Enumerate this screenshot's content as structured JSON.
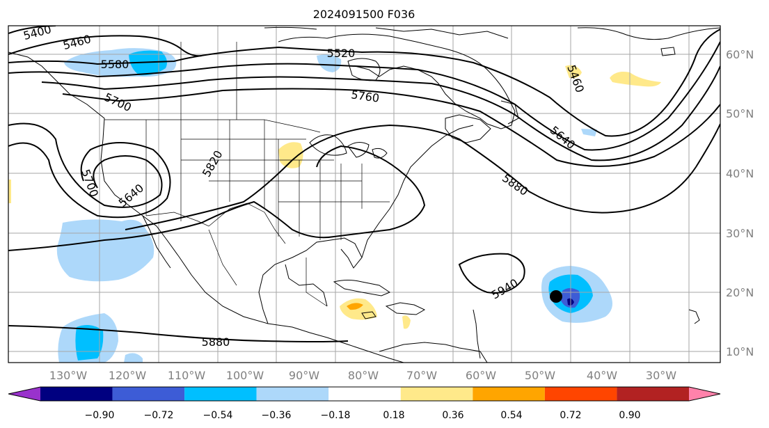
{
  "title": "2024091500 F036",
  "map": {
    "lon_labels": [
      "130°W",
      "120°W",
      "110°W",
      "100°W",
      "90°W",
      "80°W",
      "70°W",
      "60°W",
      "50°W",
      "40°W",
      "30°W"
    ],
    "lat_labels": [
      "60°N",
      "50°N",
      "40°N",
      "30°N",
      "20°N",
      "10°N"
    ],
    "contour_labels": [
      "5400",
      "5460",
      "5520",
      "5580",
      "5700",
      "5760",
      "5640",
      "5820",
      "5700",
      "5640",
      "5880",
      "5460",
      "5940",
      "5880"
    ],
    "grid_color": "#a6a6a6",
    "coast_color": "#000000",
    "storm_marker": "black-dot"
  },
  "colorbar": {
    "ticks": [
      "−0.90",
      "−0.72",
      "−0.54",
      "−0.36",
      "−0.18",
      "0.18",
      "0.36",
      "0.54",
      "0.72",
      "0.90"
    ],
    "colors": [
      "#9932cc",
      "#000080",
      "#3d5cd6",
      "#00bfff",
      "#add8fa",
      "#ffffff",
      "#ffe98a",
      "#ffa500",
      "#ff4500",
      "#b22222",
      "#ff82ab"
    ]
  }
}
